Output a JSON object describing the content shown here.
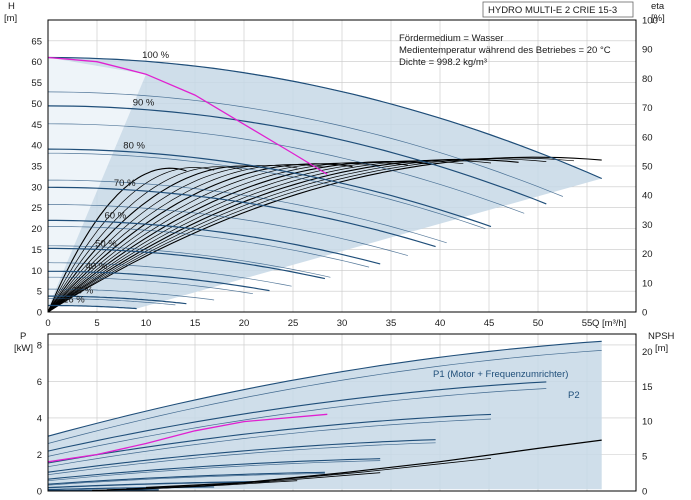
{
  "chart_data": [
    {
      "type": "line",
      "name_box": "HYDRO MULTI-E 2 CRIE 15-3",
      "xlabel": "Q [m³/h]",
      "ylabel_left": "H",
      "ylabel_left_unit": "[m]",
      "ylabel_right": "eta",
      "ylabel_right_unit": "[%]",
      "xlim": [
        0,
        60
      ],
      "ylim_left": [
        0,
        70
      ],
      "ylim_right": [
        0,
        100
      ],
      "x_ticks": [
        0,
        5,
        10,
        15,
        20,
        25,
        30,
        35,
        40,
        45,
        50,
        55
      ],
      "y_ticks_left": [
        0,
        5,
        10,
        15,
        20,
        25,
        30,
        35,
        40,
        45,
        50,
        55,
        60,
        65
      ],
      "y_ticks_right": [
        0,
        10,
        20,
        30,
        40,
        50,
        60,
        70,
        80,
        90,
        100
      ],
      "grid": true,
      "notes": [
        "Fördermedium = Wasser",
        "Medientemperatur während des Betriebes = 20 °C",
        "Dichte = 998.2 kg/m³"
      ],
      "speed_curves": [
        {
          "label": "100 %",
          "pct": 100
        },
        {
          "label": "90 %",
          "pct": 90
        },
        {
          "label": "80 %",
          "pct": 80
        },
        {
          "label": "70 %",
          "pct": 70
        },
        {
          "label": "60 %",
          "pct": 60
        },
        {
          "label": "50 %",
          "pct": 50
        },
        {
          "label": "40 %",
          "pct": 40
        },
        {
          "label": "25 %",
          "pct": 25
        },
        {
          "label": "16 %",
          "pct": 16
        }
      ],
      "head_curve_100": {
        "shutoff_head": 61,
        "max_flow": 56.5,
        "head_at_max_flow": 32
      },
      "duty_curve_points": {
        "x": [
          0,
          5,
          10,
          15,
          20,
          25,
          28.5
        ],
        "y": [
          61,
          60,
          57,
          52,
          45,
          38,
          33
        ]
      },
      "colors": {
        "head": "#1f4e79",
        "eff": "#000000",
        "duty": "#e020d0",
        "area": "#c7d8e6"
      }
    },
    {
      "type": "line",
      "ylabel_left": "P",
      "ylabel_left_unit": "[kW]",
      "ylabel_right": "NPSH",
      "ylabel_right_unit": "[m]",
      "ylim_left": [
        0,
        8.6
      ],
      "ylim_right": [
        0,
        22.5
      ],
      "y_ticks_left": [
        0,
        2,
        4,
        6,
        8
      ],
      "y_ticks_right": [
        0,
        5,
        10,
        15,
        20
      ],
      "series_labels": [
        "P1 (Motor + Frequenzumrichter)",
        "P2"
      ],
      "power_100": {
        "p1_shutoff": 3.0,
        "p1_max": 8.2,
        "p2_shutoff": 2.6,
        "p2_max": 7.7
      },
      "npsh_points": {
        "x": [
          10,
          20,
          30,
          40,
          50,
          56.5
        ],
        "y": [
          0.5,
          1.2,
          2.6,
          4.2,
          6.1,
          7.3
        ]
      },
      "duty_power_points": {
        "x": [
          0,
          5,
          10,
          15,
          20,
          28.5
        ],
        "y": [
          1.6,
          2.0,
          2.6,
          3.3,
          3.8,
          4.2
        ]
      }
    }
  ]
}
